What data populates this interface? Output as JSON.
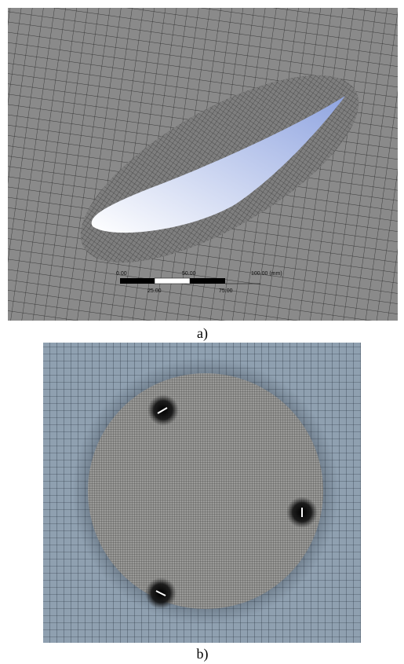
{
  "panels": [
    {
      "caption": "a)",
      "scale_top": [
        "0.00",
        "50.00",
        "100.00 (mm)"
      ],
      "scale_bottom": [
        "25.00",
        "75.00"
      ]
    },
    {
      "caption": "b)"
    }
  ]
}
